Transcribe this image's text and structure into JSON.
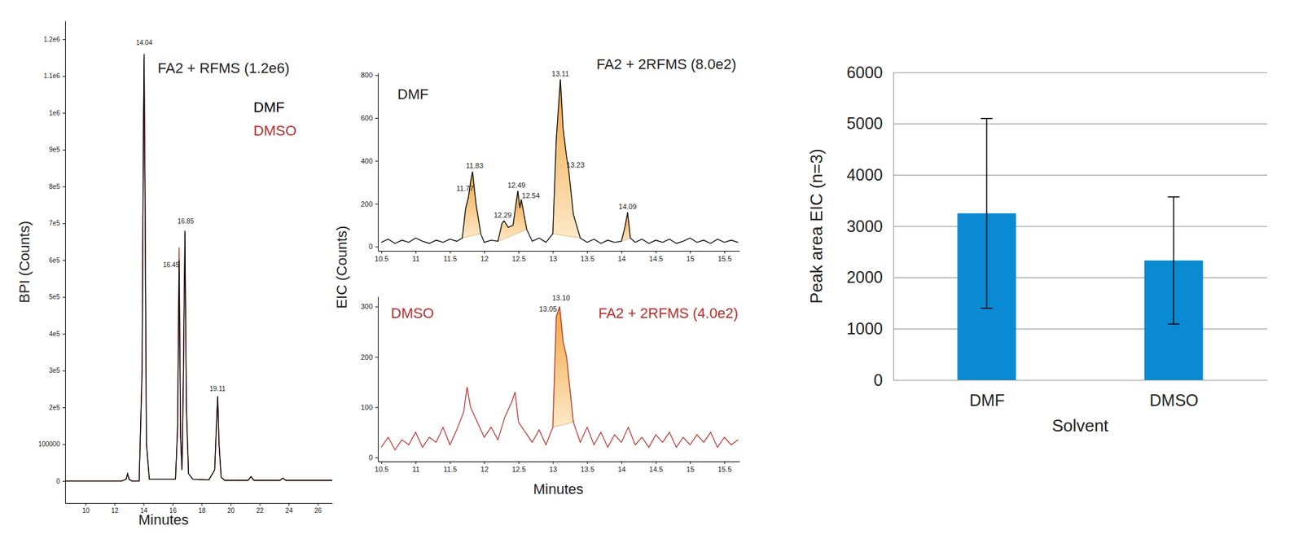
{
  "chart_data": [
    {
      "type": "line",
      "title": "FA2 + RFMS (1.2e6)",
      "x_label": "Minutes",
      "y_label": "BPI (Counts)",
      "x": [
        8.6,
        12.5,
        12.8,
        12.9,
        13,
        13.2,
        13.7,
        13.9,
        14,
        14.04,
        14.1,
        14.2,
        14.4,
        15.5,
        16.2,
        16.35,
        16.45,
        16.55,
        16.65,
        16.75,
        16.85,
        16.95,
        17.1,
        17.4,
        18.5,
        18.9,
        19.05,
        19.11,
        19.2,
        19.35,
        19.6,
        21.2,
        21.4,
        21.6,
        23.4,
        23.6,
        23.8,
        27
      ],
      "series": [
        {
          "name": "DMF",
          "color": "#000000",
          "values": [
            0,
            0,
            5000,
            20000,
            5000,
            0,
            0,
            300000,
            1000000,
            1160000,
            800000,
            100000,
            5000,
            5000,
            5000,
            150000,
            600000,
            120000,
            30000,
            300000,
            680000,
            200000,
            20000,
            5000,
            3000,
            30000,
            180000,
            230000,
            100000,
            10000,
            2000,
            2000,
            12000,
            2000,
            2000,
            8000,
            2000,
            2000
          ]
        },
        {
          "name": "DMSO",
          "color": "#b5302f",
          "values": [
            0,
            0,
            5000,
            20000,
            5000,
            0,
            0,
            300000,
            1000000,
            1150000,
            800000,
            100000,
            5000,
            5000,
            5000,
            150000,
            635000,
            120000,
            30000,
            300000,
            675000,
            200000,
            20000,
            5000,
            3000,
            30000,
            180000,
            230000,
            100000,
            10000,
            2000,
            2000,
            12000,
            2000,
            2000,
            8000,
            2000,
            2000
          ]
        }
      ],
      "xlim": [
        8.6,
        27
      ],
      "ylim": [
        -60000,
        1250000
      ],
      "xticks": [
        10,
        12,
        14,
        16,
        18,
        20,
        22,
        24,
        26
      ],
      "yticks": [
        0,
        100000,
        {
          "value": 200000,
          "label": "2e5"
        },
        {
          "value": 300000,
          "label": "3e5"
        },
        {
          "value": 400000,
          "label": "4e5"
        },
        {
          "value": 500000,
          "label": "5e5"
        },
        {
          "value": 600000,
          "label": "6e5"
        },
        {
          "value": 700000,
          "label": "7e5"
        },
        {
          "value": 800000,
          "label": "8e5"
        },
        {
          "value": 900000,
          "label": "9e5"
        },
        {
          "value": 1000000,
          "label": "1e6"
        },
        {
          "value": 1100000,
          "label": "1.1e6"
        },
        {
          "value": 1200000,
          "label": "1.2e6"
        }
      ],
      "legend": "top-right",
      "annotations": [
        {
          "text": "14.04",
          "x": 14.04,
          "y": 1185000
        },
        {
          "text": "16.45",
          "x": 15.9,
          "y": 580000
        },
        {
          "text": "16.85",
          "x": 16.9,
          "y": 700000
        },
        {
          "text": "19.11",
          "x": 19.1,
          "y": 245000
        }
      ]
    },
    {
      "type": "line",
      "title": "FA2 + 2RFMS (8.0e2)",
      "subtitle": "DMF",
      "y_label": "EIC (Counts)",
      "x": [
        10.5,
        10.6,
        10.7,
        10.8,
        10.9,
        11,
        11.1,
        11.2,
        11.3,
        11.4,
        11.5,
        11.6,
        11.68,
        11.73,
        11.77,
        11.8,
        11.83,
        11.88,
        11.95,
        12,
        12.1,
        12.2,
        12.26,
        12.29,
        12.35,
        12.42,
        12.49,
        12.52,
        12.54,
        12.62,
        12.7,
        12.8,
        12.9,
        13,
        13.05,
        13.11,
        13.15,
        13.2,
        13.23,
        13.3,
        13.4,
        13.5,
        13.6,
        13.7,
        13.8,
        13.9,
        14,
        14.05,
        14.09,
        14.13,
        14.2,
        14.3,
        14.4,
        14.5,
        14.6,
        14.7,
        14.8,
        14.9,
        15,
        15.1,
        15.2,
        15.3,
        15.4,
        15.5,
        15.6,
        15.7
      ],
      "series": [
        {
          "color": "#000000",
          "values": [
            20,
            35,
            15,
            30,
            20,
            40,
            25,
            15,
            30,
            20,
            35,
            25,
            40,
            180,
            230,
            300,
            350,
            200,
            60,
            20,
            30,
            25,
            110,
            120,
            90,
            100,
            260,
            180,
            220,
            80,
            25,
            40,
            20,
            60,
            500,
            780,
            550,
            420,
            360,
            150,
            40,
            20,
            35,
            15,
            30,
            20,
            25,
            90,
            160,
            40,
            20,
            35,
            15,
            30,
            20,
            35,
            15,
            25,
            40,
            20,
            30,
            15,
            35,
            20,
            30,
            20
          ]
        }
      ],
      "peaks": [
        [
          11.68,
          11.95
        ],
        [
          12.2,
          12.62
        ],
        [
          13,
          13.4
        ],
        [
          14,
          14.13
        ]
      ],
      "xlim": [
        10.45,
        15.72
      ],
      "ylim": [
        -20,
        810
      ],
      "xticks": [
        10.5,
        11,
        11.5,
        12,
        12.5,
        13,
        13.5,
        14,
        14.5,
        15,
        15.5
      ],
      "yticks": [
        0,
        200,
        400,
        600,
        800
      ],
      "annotations": [
        {
          "text": "11.77",
          "x": 11.72,
          "y": 260
        },
        {
          "text": "11.83",
          "x": 11.86,
          "y": 365
        },
        {
          "text": "12.29",
          "x": 12.27,
          "y": 135
        },
        {
          "text": "12.49",
          "x": 12.47,
          "y": 275
        },
        {
          "text": "12.54",
          "x": 12.68,
          "y": 225
        },
        {
          "text": "13.11",
          "x": 13.11,
          "y": 795
        },
        {
          "text": "13.23",
          "x": 13.33,
          "y": 370
        },
        {
          "text": "14.09",
          "x": 14.09,
          "y": 175
        }
      ]
    },
    {
      "type": "line",
      "title": "FA2 + 2RFMS (4.0e2)",
      "subtitle": "DMSO",
      "x_label": "Minutes",
      "x": [
        10.5,
        10.6,
        10.7,
        10.8,
        10.9,
        11,
        11.1,
        11.2,
        11.3,
        11.4,
        11.5,
        11.6,
        11.7,
        11.75,
        11.8,
        11.9,
        12,
        12.1,
        12.2,
        12.3,
        12.4,
        12.45,
        12.5,
        12.6,
        12.7,
        12.8,
        12.9,
        13,
        13.05,
        13.1,
        13.15,
        13.2,
        13.3,
        13.4,
        13.5,
        13.6,
        13.7,
        13.8,
        13.9,
        14,
        14.1,
        14.2,
        14.3,
        14.4,
        14.5,
        14.6,
        14.7,
        14.8,
        14.9,
        15,
        15.1,
        15.2,
        15.3,
        15.4,
        15.5,
        15.6,
        15.7
      ],
      "series": [
        {
          "color": "#b5302f",
          "values": [
            20,
            40,
            15,
            35,
            25,
            50,
            20,
            40,
            30,
            60,
            25,
            55,
            90,
            140,
            100,
            70,
            40,
            60,
            35,
            80,
            110,
            130,
            70,
            50,
            30,
            55,
            25,
            60,
            280,
            300,
            230,
            200,
            70,
            30,
            60,
            25,
            50,
            20,
            45,
            30,
            60,
            25,
            40,
            20,
            45,
            30,
            50,
            20,
            40,
            25,
            45,
            30,
            50,
            20,
            40,
            25,
            35
          ]
        }
      ],
      "peaks": [
        [
          13,
          13.3
        ]
      ],
      "xlim": [
        10.45,
        15.72
      ],
      "ylim": [
        -8,
        320
      ],
      "xticks": [
        10.5,
        11,
        11.5,
        12,
        12.5,
        13,
        13.5,
        14,
        14.5,
        15,
        15.5
      ],
      "yticks": [
        0,
        100,
        200,
        300
      ],
      "annotations": [
        {
          "text": "13.05",
          "x": 12.93,
          "y": 290
        },
        {
          "text": "13.10",
          "x": 13.12,
          "y": 312
        }
      ]
    },
    {
      "type": "bar",
      "x_label": "Solvent",
      "y_label": "Peak area EIC (n=3)",
      "categories": [
        "DMF",
        "DMSO"
      ],
      "values": [
        3250,
        2330
      ],
      "errors": [
        1850,
        1240
      ],
      "color": "#0a8ad2",
      "ylim": [
        0,
        6000
      ],
      "yticks": [
        0,
        1000,
        2000,
        3000,
        4000,
        5000,
        6000
      ],
      "grid": true
    }
  ]
}
